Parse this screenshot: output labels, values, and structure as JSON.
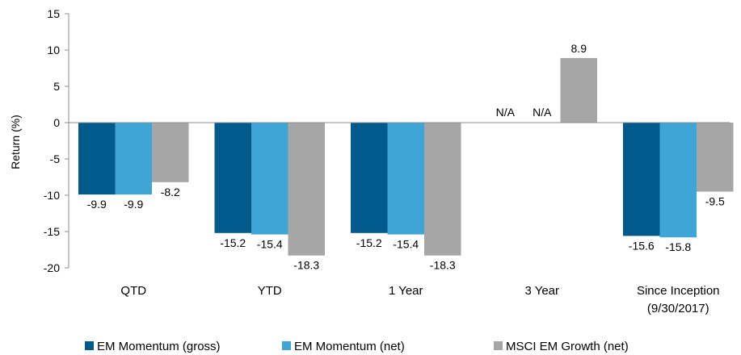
{
  "chart_data": {
    "type": "bar",
    "ylabel": "Return (%)",
    "ylim": [
      -20,
      15
    ],
    "yticks": [
      "15",
      "10",
      "5",
      "0",
      "-5",
      "-10",
      "-15",
      "-20"
    ],
    "ytick_values": [
      15,
      10,
      5,
      0,
      -5,
      -10,
      -15,
      -20
    ],
    "categories": [
      {
        "line1": "QTD",
        "line2": ""
      },
      {
        "line1": "YTD",
        "line2": ""
      },
      {
        "line1": "1 Year",
        "line2": ""
      },
      {
        "line1": "3 Year",
        "line2": ""
      },
      {
        "line1": "Since Inception",
        "line2": "(9/30/2017)"
      }
    ],
    "series": [
      {
        "name": "EM Momentum (gross)",
        "color": "#005A8C",
        "values": [
          -9.9,
          -15.2,
          -15.2,
          null,
          -15.6
        ],
        "labels": [
          "-9.9",
          "-15.2",
          "-15.2",
          "N/A",
          "-15.6"
        ]
      },
      {
        "name": "EM Momentum (net)",
        "color": "#3FA4D6",
        "values": [
          -9.9,
          -15.4,
          -15.4,
          null,
          -15.8
        ],
        "labels": [
          "-9.9",
          "-15.4",
          "-15.4",
          "N/A",
          "-15.8"
        ]
      },
      {
        "name": "MSCI EM Growth (net)",
        "color": "#A6A6A6",
        "values": [
          -8.2,
          -18.3,
          -18.3,
          8.9,
          -9.5
        ],
        "labels": [
          "-8.2",
          "-18.3",
          "-18.3",
          "8.9",
          "-9.5"
        ]
      }
    ],
    "grid": false,
    "legend_position": "bottom"
  }
}
